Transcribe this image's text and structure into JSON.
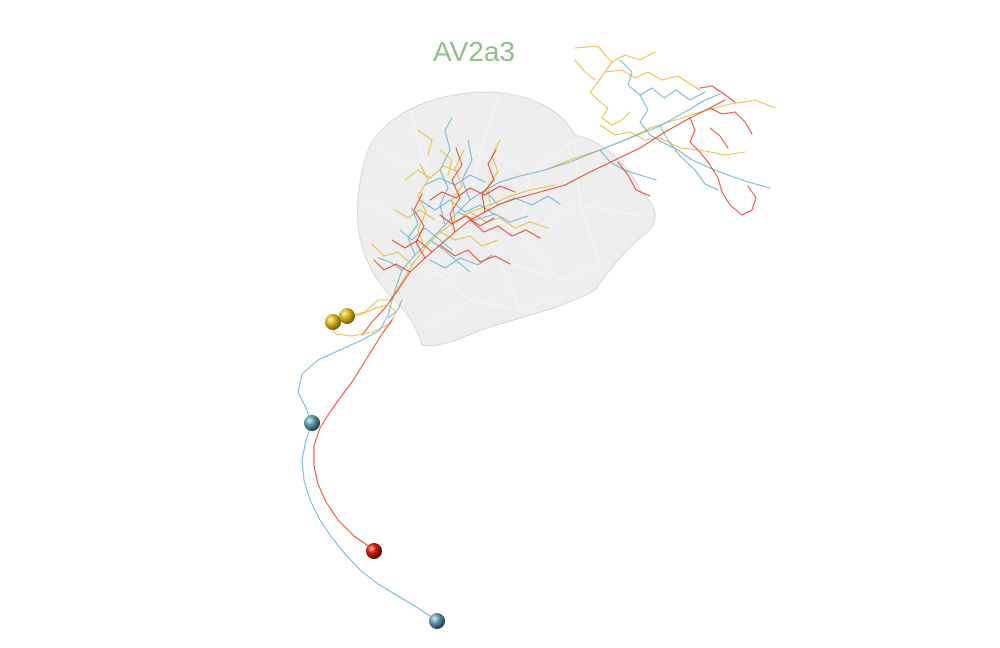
{
  "title": "AV2a3",
  "colors": {
    "title": "#8fbf8a",
    "neuropil_fill": "#e9e9e9",
    "neuron_red": "#e8432e",
    "neuron_blue": "#6fb3d2",
    "neuron_yellow": "#e3bd3b",
    "soma_yellow": "#c9a51c",
    "soma_blue": "#5e92a6",
    "soma_red": "#c8180c"
  },
  "neurons": [
    {
      "name": "neuron-red",
      "color_key": "neuron_red"
    },
    {
      "name": "neuron-blue",
      "color_key": "neuron_blue"
    },
    {
      "name": "neuron-yellow",
      "color_key": "neuron_yellow"
    }
  ]
}
